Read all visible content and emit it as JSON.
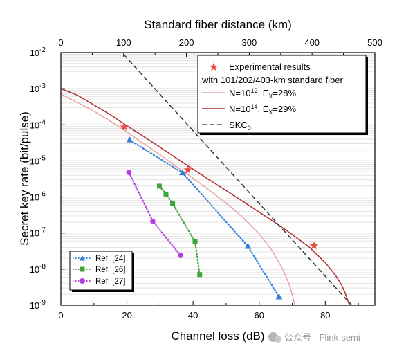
{
  "chart_data": {
    "type": "line",
    "xlabel": "Channel loss (dB)",
    "x2label": "Standard fiber distance (km)",
    "ylabel": "Secret key rate (bit/pulse)",
    "xlim": [
      0,
      95
    ],
    "x2lim": [
      0,
      500
    ],
    "ylim_log10": [
      -9,
      -2
    ],
    "y_scale": "log",
    "grid": "horizontal minor",
    "xticks": [
      "0",
      "20",
      "40",
      "60",
      "80"
    ],
    "x2ticks": [
      "0",
      "100",
      "200",
      "300",
      "400",
      "500"
    ],
    "yticks": [
      {
        "base": "10",
        "exp": "-9"
      },
      {
        "base": "10",
        "exp": "-8"
      },
      {
        "base": "10",
        "exp": "-7"
      },
      {
        "base": "10",
        "exp": "-6"
      },
      {
        "base": "10",
        "exp": "-5"
      },
      {
        "base": "10",
        "exp": "-4"
      },
      {
        "base": "10",
        "exp": "-3"
      },
      {
        "base": "10",
        "exp": "-2"
      }
    ],
    "legend_main": {
      "experimental_line1": "Experimental results",
      "experimental_line2": "with 101/202/403-km standard fiber",
      "n12_pre": "N=10",
      "n12_exp": "12",
      "n12_mid": ", E",
      "n12_sub": "X",
      "n12_post": "=28%",
      "n14_pre": "N=10",
      "n14_exp": "14",
      "n14_mid": ", E",
      "n14_sub": "X",
      "n14_post": "=29%",
      "skc_pre": "SKC",
      "skc_sub": "0"
    },
    "legend_refs": [
      "Ref. [24]",
      "Ref. [26]",
      "Ref. [27]"
    ],
    "series": [
      {
        "name": "N=10^14, E_X=29%",
        "color": "#b22a2a",
        "style": "solid",
        "x": [
          0,
          5,
          10,
          15,
          20,
          25,
          30,
          35,
          40,
          45,
          50,
          55,
          60,
          65,
          70,
          75,
          80,
          83,
          85,
          86,
          87.3
        ],
        "y_log10": [
          -3.0,
          -3.18,
          -3.45,
          -3.72,
          -4.03,
          -4.32,
          -4.62,
          -4.93,
          -5.23,
          -5.53,
          -5.82,
          -6.12,
          -6.42,
          -6.72,
          -7.04,
          -7.38,
          -7.82,
          -8.16,
          -8.45,
          -8.66,
          -9.0
        ]
      },
      {
        "name": "N=10^12, E_X=28%",
        "color": "#e9a2a0",
        "style": "solid",
        "x": [
          0,
          5,
          10,
          15,
          20,
          25,
          30,
          35,
          40,
          45,
          50,
          55,
          60,
          64,
          67,
          69,
          70,
          70.8
        ],
        "y_log10": [
          -3.15,
          -3.38,
          -3.62,
          -3.9,
          -4.2,
          -4.52,
          -4.83,
          -5.16,
          -5.48,
          -5.82,
          -6.17,
          -6.56,
          -7.02,
          -7.5,
          -7.98,
          -8.4,
          -8.7,
          -9.0
        ]
      },
      {
        "name": "SKC0",
        "color": "#333333",
        "style": "dashed",
        "x": [
          19,
          88
        ],
        "y_log10": [
          -2.05,
          -9.0
        ]
      },
      {
        "name": "Experimental results",
        "color": "#ea4b45",
        "marker": "star",
        "x": [
          19.2,
          38.4,
          76.6
        ],
        "y_log10": [
          -4.06,
          -5.25,
          -7.35
        ]
      },
      {
        "name": "Ref. [24]",
        "color": "#2f7fd6",
        "marker": "triangle",
        "style": "dotted",
        "x": [
          20.8,
          36.8,
          56.6,
          66.0
        ],
        "y_log10": [
          -4.42,
          -5.33,
          -7.37,
          -8.77
        ]
      },
      {
        "name": "Ref. [26]",
        "color": "#3da43a",
        "marker": "square",
        "style": "dotted",
        "x": [
          29.8,
          31.8,
          33.8,
          40.6,
          42.0
        ],
        "y_log10": [
          -5.7,
          -5.92,
          -6.18,
          -7.24,
          -8.15
        ]
      },
      {
        "name": "Ref. [27]",
        "color": "#b43fe0",
        "marker": "circle",
        "style": "dotted",
        "x": [
          20.6,
          27.8,
          36.2
        ],
        "y_log10": [
          -5.32,
          -6.67,
          -7.62
        ]
      }
    ]
  },
  "watermark": "公众号 · Flink-semi"
}
